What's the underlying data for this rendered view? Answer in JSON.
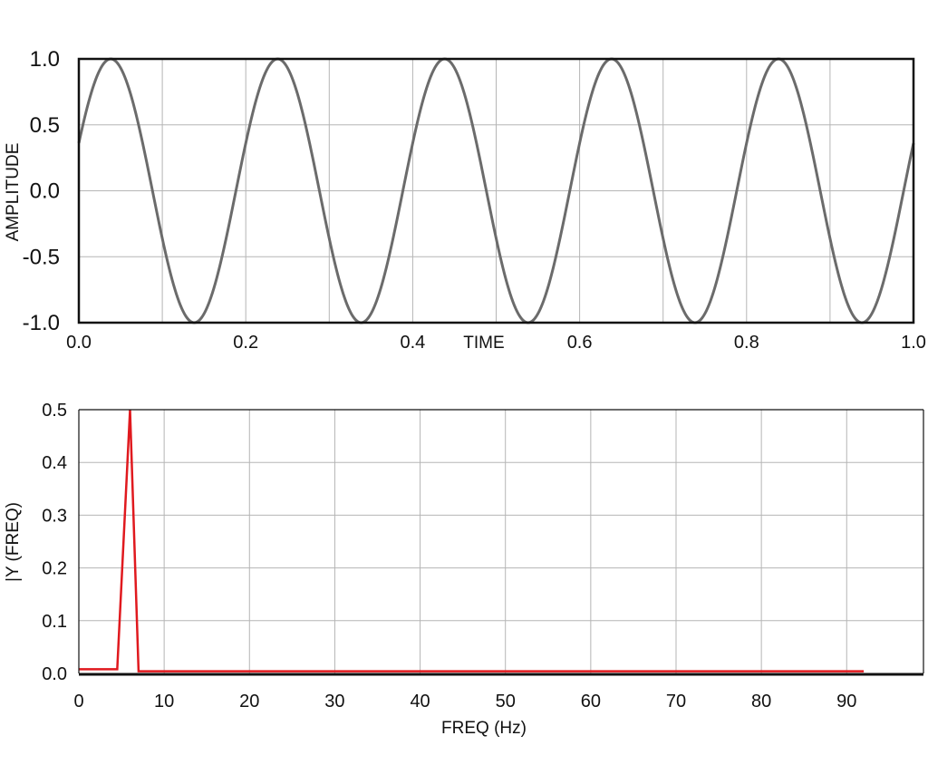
{
  "chart_data": [
    {
      "type": "line",
      "xlabel": "TIME",
      "ylabel": "AMPLITUDE",
      "xlim": [
        0.0,
        1.0
      ],
      "ylim": [
        -1.0,
        1.0
      ],
      "x_ticks": [
        "0.0",
        "0.2",
        "0.4",
        "0.6",
        "0.8",
        "1.0"
      ],
      "y_ticks": [
        "1.0",
        "0.5",
        "0.0",
        "-0.5",
        "-1.0"
      ],
      "x_grid": [
        0.1,
        0.2,
        0.3,
        0.4,
        0.5,
        0.6,
        0.7,
        0.8,
        0.9
      ],
      "y_grid": [
        0.5,
        0.0,
        -0.5
      ],
      "grid": true,
      "signal": {
        "frequency_hz": 5,
        "amplitude": 1.0,
        "phase_rad": 0.37
      },
      "series": [
        {
          "color": "#6b6b6b"
        }
      ]
    },
    {
      "type": "line",
      "xlabel": "FREQ (Hz)",
      "ylabel": "|Y (FREQ)",
      "xlim": [
        0,
        99
      ],
      "ylim": [
        0.0,
        0.5
      ],
      "x_ticks": [
        "0",
        "10",
        "20",
        "30",
        "40",
        "50",
        "60",
        "70",
        "80",
        "90"
      ],
      "y_ticks": [
        "0.5",
        "0.4",
        "0.3",
        "0.2",
        "0.1",
        "0.0"
      ],
      "grid": true,
      "series": [
        {
          "color": "#e0191e",
          "x": [
            0,
            4.5,
            6,
            7,
            92
          ],
          "y": [
            0.008,
            0.008,
            0.5,
            0.004,
            0.004
          ]
        }
      ]
    }
  ]
}
